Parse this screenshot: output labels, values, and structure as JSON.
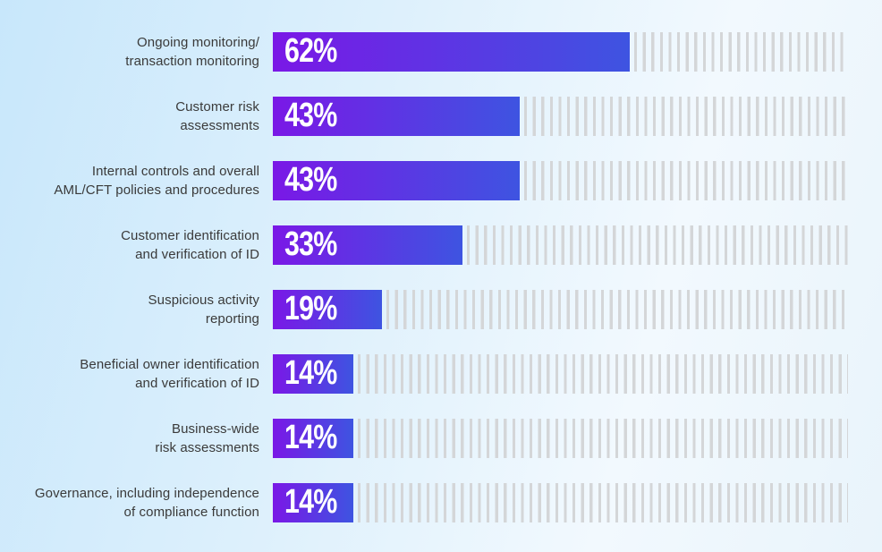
{
  "chart_data": {
    "type": "bar",
    "orientation": "horizontal",
    "categories": [
      "Ongoing monitoring/ transaction monitoring",
      "Customer risk assessments",
      "Internal controls and overall AML/CFT policies and procedures",
      "Customer identification and verification of ID",
      "Suspicious activity reporting",
      "Beneficial owner identification and verification of ID",
      "Business-wide risk assessments",
      "Governance, including independence of compliance function"
    ],
    "values": [
      62,
      43,
      43,
      33,
      19,
      14,
      14,
      14
    ],
    "value_labels": [
      "62%",
      "43%",
      "43%",
      "33%",
      "19%",
      "14%",
      "14%",
      "14%"
    ],
    "xlim": [
      0,
      100
    ],
    "legend": "none",
    "grid": "vertical hatch ticks filling remainder of each row up to 100%",
    "bar_style": "per-bar left-to-right gradient purple to blue, data label inside bar at left in bold white condensed type"
  },
  "rows": [
    {
      "label": "Ongoing monitoring/\ntransaction monitoring",
      "value": 62,
      "value_label": "62%"
    },
    {
      "label": "Customer risk\nassessments",
      "value": 43,
      "value_label": "43%"
    },
    {
      "label": "Internal controls and overall\nAML/CFT policies and procedures",
      "value": 43,
      "value_label": "43%"
    },
    {
      "label": "Customer identification\nand verification of ID",
      "value": 33,
      "value_label": "33%"
    },
    {
      "label": "Suspicious activity\nreporting",
      "value": 19,
      "value_label": "19%"
    },
    {
      "label": "Beneficial owner identification\nand verification of ID",
      "value": 14,
      "value_label": "14%"
    },
    {
      "label": "Business-wide\nrisk assessments",
      "value": 14,
      "value_label": "14%"
    },
    {
      "label": "Governance, including independence\nof compliance function",
      "value": 14,
      "value_label": "14%"
    }
  ],
  "colors": {
    "bar_gradient_start": "#7a18e6",
    "bar_gradient_end": "#3e54e1",
    "tick": "#d4d6d8",
    "label_text": "#3a3a3a",
    "value_text": "#ffffff",
    "background_start": "#c8e7fb",
    "background_mid": "#f2f9fe",
    "background_end": "#e9f4fb"
  }
}
